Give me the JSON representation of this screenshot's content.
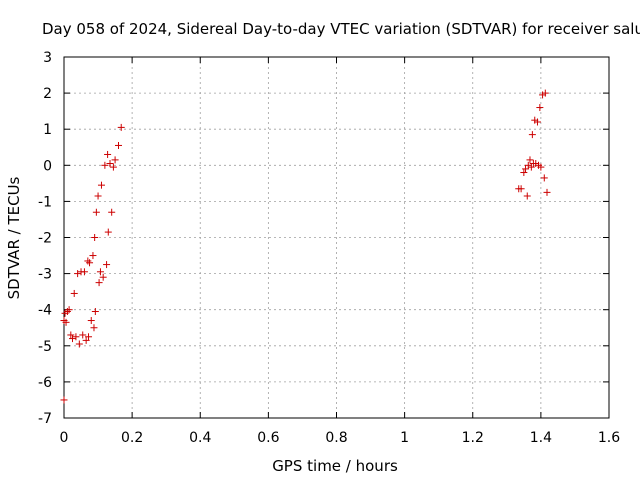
{
  "chart_data": {
    "type": "scatter",
    "title": "Day 058 of 2024, Sidereal Day-to-day VTEC variation (SDTVAR) for receiver salu",
    "xlabel": "GPS time / hours",
    "ylabel": "SDTVAR / TECUs",
    "xlim": [
      0,
      1.6
    ],
    "ylim": [
      -7,
      3
    ],
    "x_ticks": [
      "0",
      "0.2",
      "0.4",
      "0.6",
      "0.8",
      "1",
      "1.2",
      "1.4",
      "1.6"
    ],
    "y_ticks": [
      "3",
      "2",
      "1",
      "0",
      "-1",
      "-2",
      "-3",
      "-4",
      "-5",
      "-6",
      "-7"
    ],
    "grid": true,
    "colors": {
      "points": "#cc0000",
      "grid": "#a0a0a0",
      "axes": "#000000"
    },
    "series": [
      {
        "name": "SDTVAR",
        "marker": "+",
        "points": [
          [
            0.0,
            -6.5
          ],
          [
            0.0,
            -4.3
          ],
          [
            0.003,
            -4.1
          ],
          [
            0.006,
            -4.35
          ],
          [
            0.01,
            -4.05
          ],
          [
            0.015,
            -4.0
          ],
          [
            0.02,
            -4.7
          ],
          [
            0.025,
            -4.8
          ],
          [
            0.03,
            -3.55
          ],
          [
            0.035,
            -4.75
          ],
          [
            0.04,
            -3.0
          ],
          [
            0.045,
            -4.95
          ],
          [
            0.05,
            -2.95
          ],
          [
            0.055,
            -4.7
          ],
          [
            0.06,
            -2.95
          ],
          [
            0.065,
            -4.85
          ],
          [
            0.07,
            -2.65
          ],
          [
            0.072,
            -4.75
          ],
          [
            0.075,
            -2.7
          ],
          [
            0.08,
            -4.3
          ],
          [
            0.085,
            -2.5
          ],
          [
            0.088,
            -4.5
          ],
          [
            0.09,
            -2.0
          ],
          [
            0.092,
            -4.05
          ],
          [
            0.095,
            -1.3
          ],
          [
            0.1,
            -0.85
          ],
          [
            0.103,
            -3.25
          ],
          [
            0.107,
            -2.95
          ],
          [
            0.11,
            -0.55
          ],
          [
            0.115,
            -3.1
          ],
          [
            0.12,
            0.0
          ],
          [
            0.125,
            -2.75
          ],
          [
            0.128,
            0.3
          ],
          [
            0.13,
            -1.85
          ],
          [
            0.135,
            0.05
          ],
          [
            0.14,
            -1.3
          ],
          [
            0.145,
            -0.05
          ],
          [
            0.15,
            0.15
          ],
          [
            0.16,
            0.55
          ],
          [
            0.168,
            1.05
          ],
          [
            1.335,
            -0.65
          ],
          [
            1.342,
            -0.65
          ],
          [
            1.35,
            -0.2
          ],
          [
            1.355,
            -0.1
          ],
          [
            1.36,
            -0.85
          ],
          [
            1.363,
            0.0
          ],
          [
            1.368,
            0.15
          ],
          [
            1.372,
            -0.05
          ],
          [
            1.375,
            0.85
          ],
          [
            1.378,
            0.05
          ],
          [
            1.382,
            1.25
          ],
          [
            1.385,
            0.05
          ],
          [
            1.39,
            1.2
          ],
          [
            1.393,
            0.0
          ],
          [
            1.397,
            1.6
          ],
          [
            1.4,
            -0.05
          ],
          [
            1.405,
            1.95
          ],
          [
            1.41,
            -0.35
          ],
          [
            1.413,
            2.0
          ],
          [
            1.418,
            -0.75
          ]
        ]
      }
    ]
  }
}
